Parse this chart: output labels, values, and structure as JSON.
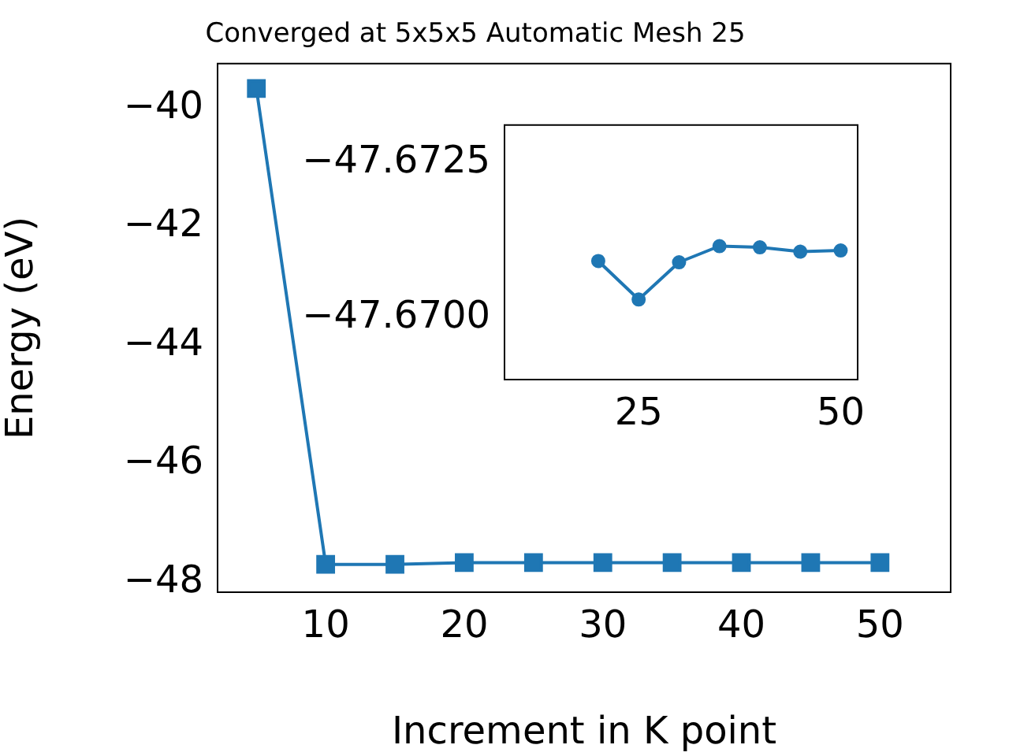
{
  "chart_data": [
    {
      "type": "line",
      "title": "Converged at 5x5x5 Automatic Mesh 25",
      "xlabel": "Increment in K point",
      "ylabel": "Energy (eV)",
      "x": [
        5,
        10,
        15,
        20,
        25,
        30,
        35,
        40,
        45,
        50
      ],
      "series": [
        {
          "color": "#1f77b4",
          "values": [
            -39.67,
            -47.7,
            -47.7,
            -47.67,
            -47.67,
            -47.67,
            -47.67,
            -47.67,
            -47.67,
            -47.67
          ]
        }
      ],
      "marker": "square",
      "grid": false,
      "legend": false,
      "xlim": [
        2.2,
        55.1
      ],
      "ylim": [
        -48.17,
        -39.25
      ],
      "xticks": [
        10,
        20,
        30,
        40,
        50
      ],
      "yticks": [
        {
          "value": -48,
          "label": "−48"
        },
        {
          "value": -46,
          "label": "−46"
        },
        {
          "value": -44,
          "label": "−44"
        },
        {
          "value": -42,
          "label": "−42"
        },
        {
          "value": -40,
          "label": "−40"
        }
      ]
    },
    {
      "type": "line",
      "x": [
        20,
        25,
        30,
        35,
        40,
        45,
        50
      ],
      "series": [
        {
          "color": "#1f77b4",
          "values": [
            -47.67091,
            -47.67029,
            -47.67089,
            -47.67115,
            -47.67113,
            -47.67106,
            -47.67108
          ]
        }
      ],
      "marker": "circle",
      "grid": false,
      "legend": false,
      "xlim": [
        8.4,
        52.1
      ],
      "ylim": [
        -47.669,
        -47.6731
      ],
      "xticks": [
        25,
        50
      ],
      "yticks": [
        {
          "value": -47.6725,
          "label": "−47.6725"
        },
        {
          "value": -47.67,
          "label": "−47.6700"
        }
      ]
    }
  ]
}
